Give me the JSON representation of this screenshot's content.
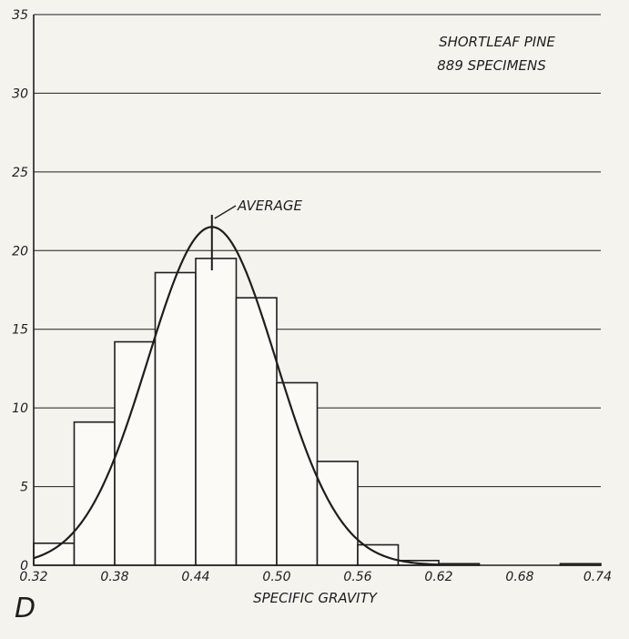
{
  "chart_data": {
    "type": "bar",
    "title_lines": [
      "SHORTLEAF  PINE",
      "889   SPECIMENS"
    ],
    "xlabel": "SPECIFIC   GRAVITY",
    "ylabel": "",
    "panel_label": "D",
    "annotation": "AVERAGE",
    "average_x": 0.452,
    "xlim": [
      0.32,
      0.74
    ],
    "ylim": [
      0,
      35
    ],
    "x_ticks": [
      "0.32",
      "0.38",
      "0.44",
      "0.50",
      "0.56",
      "0.62",
      "0.68",
      "0.74"
    ],
    "x_tick_values": [
      0.32,
      0.38,
      0.44,
      0.5,
      0.56,
      0.62,
      0.68,
      0.74
    ],
    "y_ticks": [
      0,
      5,
      10,
      15,
      20,
      25,
      30,
      35
    ],
    "grid": "horizontal",
    "bin_width": 0.03,
    "bin_starts": [
      0.32,
      0.35,
      0.38,
      0.41,
      0.44,
      0.47,
      0.5,
      0.53,
      0.56,
      0.59,
      0.62,
      0.65,
      0.68,
      0.71
    ],
    "values": [
      1.4,
      9.1,
      14.2,
      18.6,
      19.5,
      17.0,
      11.6,
      6.6,
      1.3,
      0.3,
      0.1,
      0.0,
      0.0,
      0.1
    ],
    "normal_curve": {
      "mean": 0.452,
      "sd": 0.0475,
      "peak": 21.5
    }
  }
}
